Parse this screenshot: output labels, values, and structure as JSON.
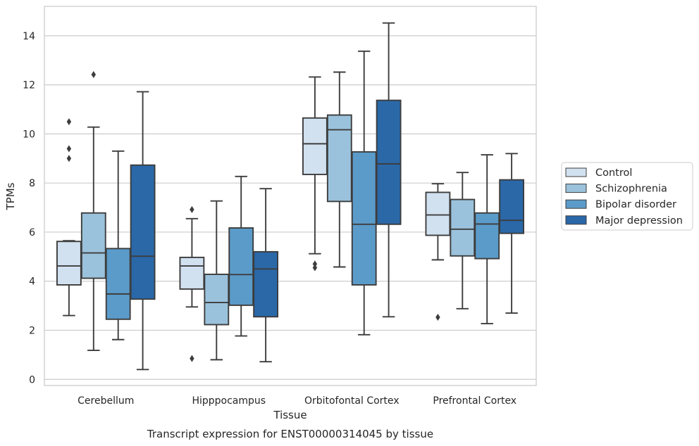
{
  "chart_data": {
    "type": "box",
    "title": "Transcript expression for ENST00000314045 by tissue",
    "xlabel": "Tissue",
    "ylabel": "TPMs",
    "ylim": [
      -0.25,
      15.2
    ],
    "yticks": [
      0,
      2,
      4,
      6,
      8,
      10,
      12,
      14
    ],
    "grid": "horizontal",
    "legend_position": "right",
    "categories": [
      "Cerebellum",
      "Hipppocampus",
      "Orbitofontal Cortex",
      "Prefrontal Cortex"
    ],
    "series": [
      {
        "name": "Control",
        "color": "#d1e1f0",
        "boxes": [
          {
            "whisker_low": 2.6,
            "q1": 3.85,
            "median": 4.62,
            "q3": 5.62,
            "whisker_high": 5.65,
            "outliers": [
              9.0,
              9.4,
              10.5
            ]
          },
          {
            "whisker_low": 2.95,
            "q1": 3.68,
            "median": 4.62,
            "q3": 4.97,
            "whisker_high": 6.55,
            "outliers": [
              0.85,
              6.92
            ]
          },
          {
            "whisker_low": 5.12,
            "q1": 8.35,
            "median": 9.6,
            "q3": 10.65,
            "whisker_high": 12.32,
            "outliers": [
              4.55,
              4.7
            ]
          },
          {
            "whisker_low": 4.87,
            "q1": 5.87,
            "median": 6.7,
            "q3": 7.62,
            "whisker_high": 7.97,
            "outliers": [
              2.53
            ]
          }
        ]
      },
      {
        "name": "Schizophrenia",
        "color": "#9bc2dc",
        "boxes": [
          {
            "whisker_low": 1.18,
            "q1": 4.12,
            "median": 5.15,
            "q3": 6.78,
            "whisker_high": 10.28,
            "outliers": [
              12.42
            ]
          },
          {
            "whisker_low": 0.8,
            "q1": 2.23,
            "median": 3.13,
            "q3": 4.28,
            "whisker_high": 7.27,
            "outliers": []
          },
          {
            "whisker_low": 4.58,
            "q1": 7.25,
            "median": 10.17,
            "q3": 10.77,
            "whisker_high": 12.52,
            "outliers": []
          },
          {
            "whisker_low": 2.88,
            "q1": 5.03,
            "median": 6.12,
            "q3": 7.33,
            "whisker_high": 8.43,
            "outliers": []
          }
        ]
      },
      {
        "name": "Bipolar disorder",
        "color": "#5b9bc9",
        "boxes": [
          {
            "whisker_low": 1.62,
            "q1": 2.45,
            "median": 3.48,
            "q3": 5.33,
            "whisker_high": 9.3,
            "outliers": []
          },
          {
            "whisker_low": 1.77,
            "q1": 3.02,
            "median": 4.27,
            "q3": 6.17,
            "whisker_high": 8.27,
            "outliers": []
          },
          {
            "whisker_low": 1.82,
            "q1": 3.85,
            "median": 6.32,
            "q3": 9.27,
            "whisker_high": 13.37,
            "outliers": []
          },
          {
            "whisker_low": 2.27,
            "q1": 4.92,
            "median": 6.33,
            "q3": 6.78,
            "whisker_high": 9.15,
            "outliers": []
          }
        ]
      },
      {
        "name": "Major depression",
        "color": "#2a68a8",
        "boxes": [
          {
            "whisker_low": 0.4,
            "q1": 3.27,
            "median": 5.02,
            "q3": 8.73,
            "whisker_high": 11.72,
            "outliers": []
          },
          {
            "whisker_low": 0.72,
            "q1": 2.55,
            "median": 4.5,
            "q3": 5.2,
            "whisker_high": 7.77,
            "outliers": []
          },
          {
            "whisker_low": 2.55,
            "q1": 6.32,
            "median": 8.78,
            "q3": 11.37,
            "whisker_high": 14.52,
            "outliers": []
          },
          {
            "whisker_low": 2.7,
            "q1": 5.95,
            "median": 6.48,
            "q3": 8.13,
            "whisker_high": 9.2,
            "outliers": []
          }
        ]
      }
    ]
  }
}
